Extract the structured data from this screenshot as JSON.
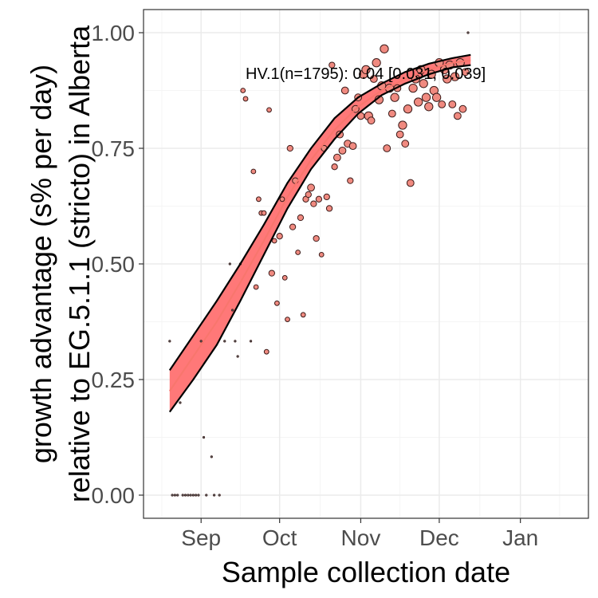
{
  "chart_data": {
    "type": "scatter",
    "title": "",
    "xlabel": "Sample collection date",
    "ylabel_line1": "growth advantage (s% per day)",
    "ylabel_line2": "relative to EG.5.1.1 (stricto) in Alberta",
    "annotation": "HV.1(n=1795): 0.04 [0.031, 0.039]",
    "x_axis_type": "date",
    "xlim": [
      "2023-08-10",
      "2024-01-27"
    ],
    "ylim": [
      -0.05,
      1.05
    ],
    "x_ticks": [
      {
        "date": "2023-09-01",
        "label": "Sep"
      },
      {
        "date": "2023-10-01",
        "label": "Oct"
      },
      {
        "date": "2023-11-01",
        "label": "Nov"
      },
      {
        "date": "2023-12-01",
        "label": "Dec"
      },
      {
        "date": "2024-01-01",
        "label": "Jan"
      }
    ],
    "y_ticks": [
      {
        "value": 0.0,
        "label": "0.00"
      },
      {
        "value": 0.25,
        "label": "0.25"
      },
      {
        "value": 0.5,
        "label": "0.50"
      },
      {
        "value": 0.75,
        "label": "0.75"
      },
      {
        "value": 1.0,
        "label": "1.00"
      }
    ],
    "grid": true,
    "colors": {
      "fit_line": "#f8766d",
      "ribbon_fill": "#ff7878",
      "ribbon_border": "#000000",
      "point_fill": "#f08a80",
      "point_stroke": "#3a1a18",
      "panel_border": "#333333",
      "grid_major": "#ebebeb",
      "grid_minor": "#f5f5f5"
    },
    "fit": {
      "x": [
        "2023-08-20",
        "2023-08-29",
        "2023-09-07",
        "2023-09-16",
        "2023-09-25",
        "2023-10-04",
        "2023-10-13",
        "2023-10-22",
        "2023-10-31",
        "2023-11-09",
        "2023-11-18",
        "2023-11-27",
        "2023-12-06",
        "2023-12-13"
      ],
      "y": [
        0.225,
        0.3,
        0.375,
        0.46,
        0.55,
        0.645,
        0.725,
        0.79,
        0.84,
        0.875,
        0.9,
        0.92,
        0.935,
        0.94
      ],
      "lower": [
        0.18,
        0.25,
        0.325,
        0.42,
        0.52,
        0.62,
        0.705,
        0.77,
        0.825,
        0.865,
        0.89,
        0.91,
        0.925,
        0.93
      ],
      "upper": [
        0.27,
        0.345,
        0.42,
        0.5,
        0.585,
        0.675,
        0.75,
        0.815,
        0.86,
        0.89,
        0.915,
        0.933,
        0.945,
        0.952
      ]
    },
    "points": [
      {
        "x": "2023-08-20",
        "y": 0.333,
        "n": 1
      },
      {
        "x": "2023-08-21",
        "y": 0.0,
        "n": 1
      },
      {
        "x": "2023-08-22",
        "y": 0.0,
        "n": 1
      },
      {
        "x": "2023-08-23",
        "y": 0.0,
        "n": 1
      },
      {
        "x": "2023-08-24",
        "y": 0.2,
        "n": 1
      },
      {
        "x": "2023-08-25",
        "y": 0.0,
        "n": 1
      },
      {
        "x": "2023-08-26",
        "y": 0.0,
        "n": 1
      },
      {
        "x": "2023-08-27",
        "y": 0.0,
        "n": 1
      },
      {
        "x": "2023-08-28",
        "y": 0.0,
        "n": 1
      },
      {
        "x": "2023-08-29",
        "y": 0.0,
        "n": 1
      },
      {
        "x": "2023-08-30",
        "y": 0.0,
        "n": 1
      },
      {
        "x": "2023-08-31",
        "y": 0.0,
        "n": 1
      },
      {
        "x": "2023-09-01",
        "y": 0.333,
        "n": 1
      },
      {
        "x": "2023-09-02",
        "y": 0.125,
        "n": 1
      },
      {
        "x": "2023-09-03",
        "y": 0.0,
        "n": 1
      },
      {
        "x": "2023-09-05",
        "y": 0.083,
        "n": 1
      },
      {
        "x": "2023-09-06",
        "y": 0.0,
        "n": 1
      },
      {
        "x": "2023-09-08",
        "y": 0.0,
        "n": 1
      },
      {
        "x": "2023-09-10",
        "y": 0.333,
        "n": 1
      },
      {
        "x": "2023-09-12",
        "y": 0.5,
        "n": 1
      },
      {
        "x": "2023-09-13",
        "y": 0.4,
        "n": 1
      },
      {
        "x": "2023-09-14",
        "y": 0.333,
        "n": 1
      },
      {
        "x": "2023-09-15",
        "y": 0.3,
        "n": 1
      },
      {
        "x": "2023-09-16",
        "y": 0.5,
        "n": 1
      },
      {
        "x": "2023-09-17",
        "y": 0.875,
        "n": 2
      },
      {
        "x": "2023-09-18",
        "y": 0.857,
        "n": 2
      },
      {
        "x": "2023-09-20",
        "y": 0.333,
        "n": 1
      },
      {
        "x": "2023-09-21",
        "y": 0.7,
        "n": 2
      },
      {
        "x": "2023-09-22",
        "y": 0.45,
        "n": 2
      },
      {
        "x": "2023-09-23",
        "y": 0.64,
        "n": 2
      },
      {
        "x": "2023-09-24",
        "y": 0.61,
        "n": 2
      },
      {
        "x": "2023-09-25",
        "y": 0.61,
        "n": 2
      },
      {
        "x": "2023-09-26",
        "y": 0.31,
        "n": 2
      },
      {
        "x": "2023-09-27",
        "y": 0.833,
        "n": 2
      },
      {
        "x": "2023-09-28",
        "y": 0.48,
        "n": 3
      },
      {
        "x": "2023-09-29",
        "y": 0.55,
        "n": 2
      },
      {
        "x": "2023-09-30",
        "y": 0.415,
        "n": 2
      },
      {
        "x": "2023-10-01",
        "y": 0.56,
        "n": 3
      },
      {
        "x": "2023-10-02",
        "y": 0.64,
        "n": 2
      },
      {
        "x": "2023-10-03",
        "y": 0.47,
        "n": 2
      },
      {
        "x": "2023-10-04",
        "y": 0.38,
        "n": 2
      },
      {
        "x": "2023-10-05",
        "y": 0.75,
        "n": 3
      },
      {
        "x": "2023-10-06",
        "y": 0.58,
        "n": 3
      },
      {
        "x": "2023-10-07",
        "y": 0.68,
        "n": 3
      },
      {
        "x": "2023-10-08",
        "y": 0.525,
        "n": 2
      },
      {
        "x": "2023-10-09",
        "y": 0.6,
        "n": 3
      },
      {
        "x": "2023-10-10",
        "y": 0.39,
        "n": 2
      },
      {
        "x": "2023-10-11",
        "y": 0.64,
        "n": 3
      },
      {
        "x": "2023-10-12",
        "y": 0.65,
        "n": 3
      },
      {
        "x": "2023-10-13",
        "y": 0.665,
        "n": 4
      },
      {
        "x": "2023-10-14",
        "y": 0.63,
        "n": 3
      },
      {
        "x": "2023-10-15",
        "y": 0.555,
        "n": 3
      },
      {
        "x": "2023-10-16",
        "y": 0.64,
        "n": 3
      },
      {
        "x": "2023-10-17",
        "y": 0.52,
        "n": 2
      },
      {
        "x": "2023-10-18",
        "y": 0.75,
        "n": 3
      },
      {
        "x": "2023-10-19",
        "y": 0.645,
        "n": 3
      },
      {
        "x": "2023-10-20",
        "y": 0.62,
        "n": 3
      },
      {
        "x": "2023-10-21",
        "y": 0.93,
        "n": 3
      },
      {
        "x": "2023-10-22",
        "y": 0.71,
        "n": 3
      },
      {
        "x": "2023-10-23",
        "y": 0.73,
        "n": 4
      },
      {
        "x": "2023-10-24",
        "y": 0.78,
        "n": 4
      },
      {
        "x": "2023-10-25",
        "y": 0.745,
        "n": 4
      },
      {
        "x": "2023-10-26",
        "y": 0.875,
        "n": 4
      },
      {
        "x": "2023-10-27",
        "y": 0.76,
        "n": 4
      },
      {
        "x": "2023-10-28",
        "y": 0.68,
        "n": 3
      },
      {
        "x": "2023-10-29",
        "y": 0.755,
        "n": 4
      },
      {
        "x": "2023-10-30",
        "y": 0.835,
        "n": 4
      },
      {
        "x": "2023-10-31",
        "y": 0.86,
        "n": 4
      },
      {
        "x": "2023-11-01",
        "y": 0.82,
        "n": 4
      },
      {
        "x": "2023-11-02",
        "y": 0.91,
        "n": 5
      },
      {
        "x": "2023-11-03",
        "y": 0.92,
        "n": 5
      },
      {
        "x": "2023-11-04",
        "y": 0.82,
        "n": 5
      },
      {
        "x": "2023-11-05",
        "y": 0.81,
        "n": 4
      },
      {
        "x": "2023-11-06",
        "y": 0.9,
        "n": 4
      },
      {
        "x": "2023-11-07",
        "y": 0.935,
        "n": 5
      },
      {
        "x": "2023-11-08",
        "y": 0.855,
        "n": 5
      },
      {
        "x": "2023-11-09",
        "y": 0.885,
        "n": 5
      },
      {
        "x": "2023-11-10",
        "y": 0.965,
        "n": 5
      },
      {
        "x": "2023-11-11",
        "y": 0.75,
        "n": 4
      },
      {
        "x": "2023-11-12",
        "y": 0.88,
        "n": 5
      },
      {
        "x": "2023-11-13",
        "y": 0.825,
        "n": 4
      },
      {
        "x": "2023-11-14",
        "y": 0.86,
        "n": 5
      },
      {
        "x": "2023-11-15",
        "y": 0.88,
        "n": 4
      },
      {
        "x": "2023-11-16",
        "y": 0.78,
        "n": 4
      },
      {
        "x": "2023-11-17",
        "y": 0.8,
        "n": 5
      },
      {
        "x": "2023-11-18",
        "y": 0.76,
        "n": 4
      },
      {
        "x": "2023-11-19",
        "y": 0.835,
        "n": 5
      },
      {
        "x": "2023-11-20",
        "y": 0.675,
        "n": 4
      },
      {
        "x": "2023-11-21",
        "y": 0.88,
        "n": 5
      },
      {
        "x": "2023-11-22",
        "y": 0.9,
        "n": 5
      },
      {
        "x": "2023-11-23",
        "y": 0.85,
        "n": 5
      },
      {
        "x": "2023-11-24",
        "y": 0.92,
        "n": 5
      },
      {
        "x": "2023-11-25",
        "y": 0.89,
        "n": 5
      },
      {
        "x": "2023-11-26",
        "y": 0.86,
        "n": 5
      },
      {
        "x": "2023-11-27",
        "y": 0.84,
        "n": 5
      },
      {
        "x": "2023-11-28",
        "y": 0.91,
        "n": 5
      },
      {
        "x": "2023-11-29",
        "y": 0.875,
        "n": 5
      },
      {
        "x": "2023-11-30",
        "y": 0.86,
        "n": 5
      },
      {
        "x": "2023-12-01",
        "y": 0.935,
        "n": 5
      },
      {
        "x": "2023-12-02",
        "y": 0.845,
        "n": 4
      },
      {
        "x": "2023-12-03",
        "y": 0.92,
        "n": 5
      },
      {
        "x": "2023-12-04",
        "y": 0.9,
        "n": 5
      },
      {
        "x": "2023-12-05",
        "y": 0.93,
        "n": 5
      },
      {
        "x": "2023-12-06",
        "y": 0.845,
        "n": 4
      },
      {
        "x": "2023-12-07",
        "y": 0.905,
        "n": 5
      },
      {
        "x": "2023-12-08",
        "y": 0.82,
        "n": 4
      },
      {
        "x": "2023-12-09",
        "y": 0.935,
        "n": 5
      },
      {
        "x": "2023-12-10",
        "y": 0.835,
        "n": 4
      },
      {
        "x": "2023-12-11",
        "y": 0.915,
        "n": 4
      },
      {
        "x": "2023-12-12",
        "y": 1.0,
        "n": 1
      }
    ]
  }
}
